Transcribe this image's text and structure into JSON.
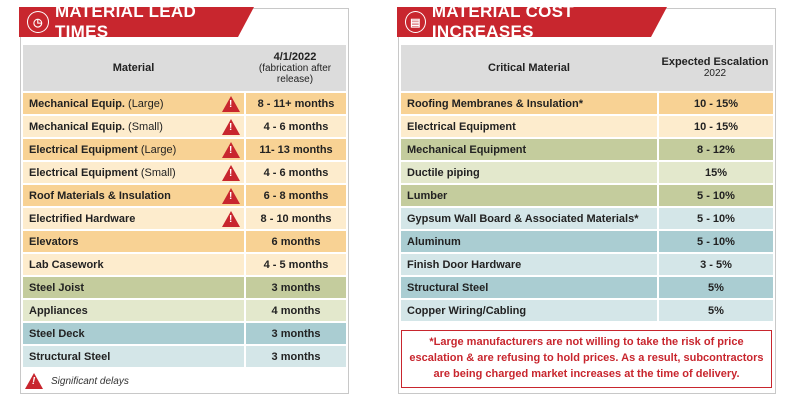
{
  "lead_times": {
    "title": "MATERIAL LEAD TIMES",
    "col_material": "Material",
    "col_date": "4/1/2022",
    "col_date_sub": "(fabrication after release)",
    "rows": [
      {
        "name": "Mechanical Equip.",
        "suffix": " (Large)",
        "value": "8 - 11+ months",
        "warn": true
      },
      {
        "name": "Mechanical Equip.",
        "suffix": " (Small)",
        "value": "4 - 6 months",
        "warn": true
      },
      {
        "name": "Electrical Equipment ",
        "suffix": " (Large)",
        "value": "11- 13 months",
        "warn": true
      },
      {
        "name": "Electrical Equipment",
        "suffix": " (Small)",
        "value": "4 - 6 months",
        "warn": true
      },
      {
        "name": "Roof Materials & Insulation",
        "suffix": "",
        "value": "6 - 8 months",
        "warn": true
      },
      {
        "name": "Electrified Hardware",
        "suffix": "",
        "value": "8 - 10 months",
        "warn": true
      },
      {
        "name": "Elevators",
        "suffix": "",
        "value": "6 months",
        "warn": false
      },
      {
        "name": "Lab Casework",
        "suffix": "",
        "value": "4 - 5 months",
        "warn": false
      },
      {
        "name": "Steel Joist",
        "suffix": "",
        "value": "3 months",
        "warn": false
      },
      {
        "name": "Appliances",
        "suffix": "",
        "value": "4 months",
        "warn": false
      },
      {
        "name": "Steel Deck",
        "suffix": "",
        "value": "3 months",
        "warn": false
      },
      {
        "name": "Structural Steel",
        "suffix": "",
        "value": "3 months",
        "warn": false
      }
    ],
    "legend": "Significant delays"
  },
  "cost_increases": {
    "title": "MATERIAL COST INCREASES",
    "col_material": "Critical Material",
    "col_escalation": "Expected Escalation",
    "col_escalation_sub": "2022",
    "rows": [
      {
        "name": "Roofing Membranes & Insulation*",
        "value": "10 - 15%"
      },
      {
        "name": "Electrical Equipment",
        "value": "10 - 15%"
      },
      {
        "name": "Mechanical Equipment",
        "value": "8 - 12%"
      },
      {
        "name": "Ductile piping",
        "value": "15%"
      },
      {
        "name": "Lumber",
        "value": "5 - 10%"
      },
      {
        "name": "Gypsum Wall Board & Associated Materials*",
        "value": "5 - 10%"
      },
      {
        "name": "Aluminum",
        "value": "5 - 10%"
      },
      {
        "name": "Finish Door Hardware",
        "value": "3 - 5%"
      },
      {
        "name": "Structural Steel",
        "value": "5%"
      },
      {
        "name": "Copper Wiring/Cabling",
        "value": "5%"
      }
    ],
    "note": "*Large manufacturers are not willing to take the risk of price escalation & are refusing to hold prices. As a result, subcontractors are being charged market increases at the time of delivery."
  },
  "colors": {
    "accent": "#c8262e",
    "orange": "#f8d294",
    "light_orange": "#fdeccd",
    "olive": "#c4cc9d",
    "light_olive": "#e3e8cc",
    "blue": "#aacdd2",
    "light_blue": "#d4e6e8"
  }
}
